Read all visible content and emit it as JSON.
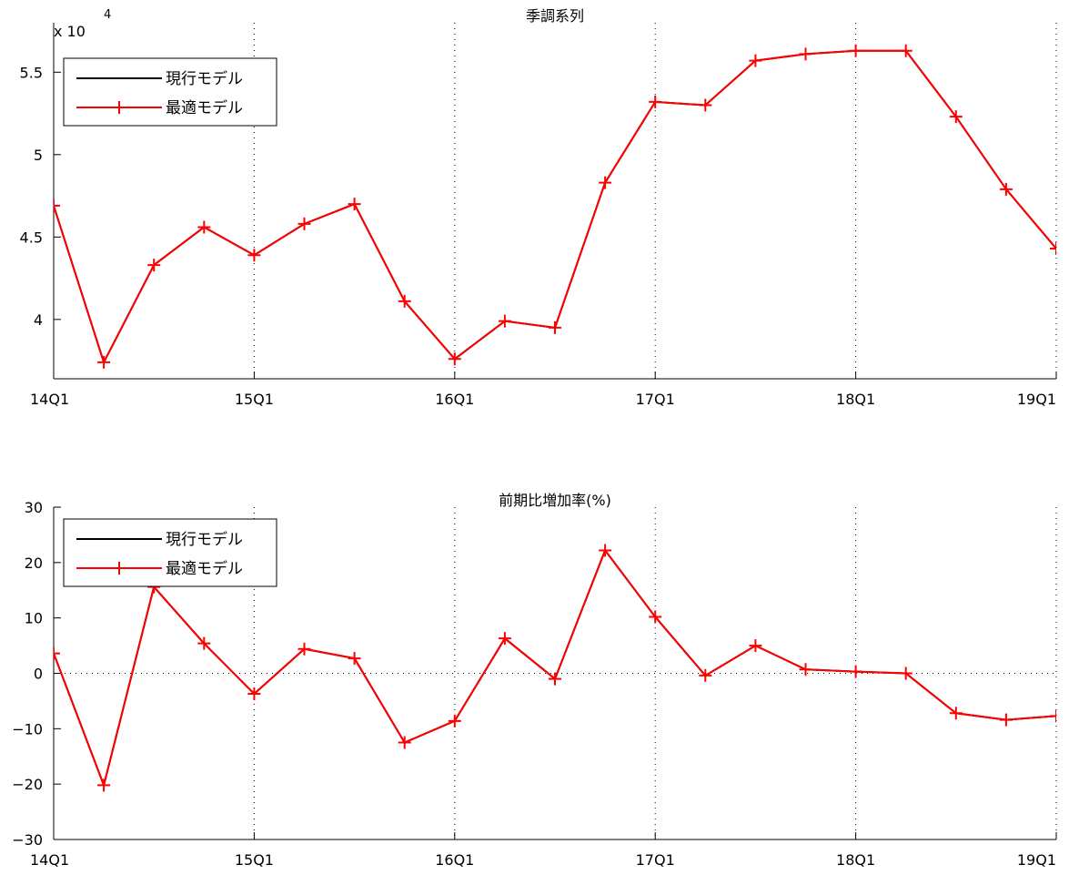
{
  "chart_data": [
    {
      "type": "line",
      "title": "季調系列",
      "exponent_label": "x 10",
      "exponent_power": "4",
      "x_tick_labels": [
        "14Q1",
        "15Q1",
        "16Q1",
        "17Q1",
        "18Q1",
        "19Q1"
      ],
      "y_tick_labels": [
        "4",
        "4.5",
        "5",
        "5.5"
      ],
      "y_ticks": [
        40000,
        45000,
        50000,
        55000
      ],
      "ylim": [
        36400,
        58000
      ],
      "xlim": [
        0,
        20
      ],
      "x_grid": true,
      "y_grid": false,
      "legend_position": "top-left",
      "x": [
        0,
        1,
        2,
        3,
        4,
        5,
        6,
        7,
        8,
        9,
        10,
        11,
        12,
        13,
        14,
        15,
        16,
        17,
        18,
        19,
        20
      ],
      "series": [
        {
          "name": "現行モデル",
          "color": "#000000",
          "marker": "none",
          "values": [
            46900,
            37400,
            43300,
            45600,
            43900,
            45800,
            47000,
            41100,
            37600,
            39900,
            39500,
            48300,
            53200,
            53000,
            55700,
            56100,
            56300,
            56300,
            52300,
            47900,
            44300
          ]
        },
        {
          "name": "最適モデル",
          "color": "#ff0000",
          "marker": "plus",
          "values": [
            46900,
            37400,
            43300,
            45600,
            43900,
            45800,
            47000,
            41100,
            37600,
            39900,
            39500,
            48300,
            53200,
            53000,
            55700,
            56100,
            56300,
            56300,
            52300,
            47900,
            44300
          ]
        }
      ]
    },
    {
      "type": "line",
      "title": "前期比増加率(%)",
      "x_tick_labels": [
        "14Q1",
        "15Q1",
        "16Q1",
        "17Q1",
        "18Q1",
        "19Q1"
      ],
      "y_tick_labels": [
        "−30",
        "−20",
        "−10",
        "0",
        "10",
        "20",
        "30"
      ],
      "y_ticks": [
        -30,
        -20,
        -10,
        0,
        10,
        20,
        30
      ],
      "ylim": [
        -30,
        30
      ],
      "xlim": [
        0,
        20
      ],
      "x_grid": true,
      "zero_line": true,
      "legend_position": "top-left",
      "x": [
        0,
        1,
        2,
        3,
        4,
        5,
        6,
        7,
        8,
        9,
        10,
        11,
        12,
        13,
        14,
        15,
        16,
        17,
        18,
        19,
        20
      ],
      "series": [
        {
          "name": "現行モデル",
          "color": "#000000",
          "marker": "none",
          "values": [
            3.6,
            -20.2,
            15.6,
            5.4,
            -3.7,
            4.4,
            2.7,
            -12.5,
            -8.6,
            6.3,
            -1.0,
            22.2,
            10.2,
            -0.4,
            5.0,
            0.7,
            0.3,
            0.0,
            -7.2,
            -8.4,
            -7.7
          ]
        },
        {
          "name": "最適モデル",
          "color": "#ff0000",
          "marker": "plus",
          "values": [
            3.6,
            -20.2,
            15.6,
            5.4,
            -3.7,
            4.4,
            2.7,
            -12.5,
            -8.6,
            6.3,
            -1.0,
            22.2,
            10.2,
            -0.4,
            5.0,
            0.7,
            0.3,
            0.0,
            -7.2,
            -8.4,
            -7.7
          ]
        }
      ]
    }
  ]
}
